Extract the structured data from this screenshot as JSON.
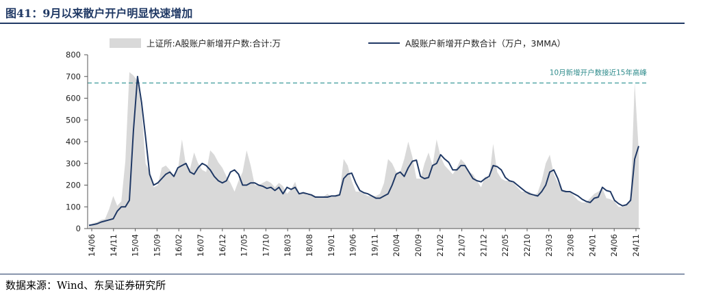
{
  "header": {
    "title": "图41：9月以来散户开户明显快速增加"
  },
  "footer": {
    "source": "数据来源：Wind、东吴证券研究所"
  },
  "chart_data": {
    "type": "area",
    "title": "",
    "xlabel": "",
    "ylabel": "",
    "ylim": [
      0,
      800
    ],
    "yticks": [
      0,
      100,
      200,
      300,
      400,
      500,
      600,
      700,
      800
    ],
    "legend_position": "top",
    "x_tick_labels": [
      "14/06",
      "14/11",
      "15/04",
      "15/09",
      "16/02",
      "16/07",
      "16/12",
      "17/05",
      "17/10",
      "18/03",
      "18/08",
      "19/01",
      "19/06",
      "19/11",
      "20/04",
      "20/09",
      "21/02",
      "21/07",
      "21/12",
      "22/05",
      "22/10",
      "23/03",
      "23/08",
      "24/01",
      "24/06",
      "24/11"
    ],
    "reference_line": {
      "value": 670,
      "label": "10月新增开户数接近15年高峰",
      "color": "#3a9a9a"
    },
    "colors": {
      "area": "#d9d9d9",
      "line": "#1f3864"
    },
    "series": [
      {
        "name": "上证所:A股账户新增开户数:合计:万",
        "kind": "area",
        "values": [
          10,
          25,
          30,
          40,
          45,
          90,
          150,
          105,
          125,
          310,
          720,
          705,
          680,
          550,
          300,
          260,
          190,
          200,
          280,
          290,
          270,
          240,
          270,
          410,
          290,
          275,
          350,
          300,
          270,
          260,
          360,
          340,
          305,
          280,
          240,
          210,
          170,
          220,
          260,
          360,
          290,
          200,
          200,
          210,
          220,
          210,
          190,
          210,
          195,
          160,
          180,
          215,
          160,
          165,
          155,
          160,
          150,
          148,
          148,
          160,
          145,
          155,
          160,
          320,
          290,
          220,
          170,
          170,
          160,
          150,
          150,
          150,
          160,
          210,
          320,
          300,
          260,
          260,
          320,
          400,
          330,
          230,
          230,
          300,
          350,
          290,
          410,
          330,
          290,
          270,
          250,
          280,
          320,
          300,
          260,
          250,
          220,
          190,
          240,
          230,
          390,
          260,
          230,
          220,
          220,
          210,
          190,
          170,
          170,
          170,
          150,
          165,
          220,
          300,
          340,
          250,
          210,
          180,
          175,
          170,
          150,
          130,
          120,
          120,
          140,
          160,
          170,
          185,
          140,
          135,
          125,
          100,
          100,
          110,
          140,
          670,
          360
        ]
      },
      {
        "name": "A股账户新增开户数合计（万户，3MMA）",
        "kind": "line",
        "values": [
          15,
          18,
          22,
          30,
          35,
          40,
          45,
          80,
          100,
          100,
          130,
          450,
          700,
          580,
          420,
          250,
          200,
          210,
          230,
          250,
          260,
          240,
          280,
          290,
          300,
          260,
          250,
          280,
          300,
          290,
          270,
          240,
          220,
          210,
          220,
          260,
          270,
          250,
          200,
          200,
          210,
          210,
          200,
          195,
          185,
          190,
          175,
          190,
          160,
          190,
          180,
          190,
          160,
          165,
          160,
          155,
          145,
          145,
          145,
          145,
          150,
          150,
          155,
          230,
          250,
          255,
          210,
          175,
          165,
          160,
          150,
          140,
          140,
          150,
          160,
          200,
          250,
          260,
          240,
          280,
          310,
          315,
          240,
          230,
          235,
          290,
          300,
          340,
          320,
          305,
          270,
          270,
          290,
          290,
          260,
          230,
          220,
          215,
          230,
          240,
          290,
          285,
          270,
          235,
          220,
          215,
          200,
          185,
          170,
          160,
          155,
          150,
          170,
          200,
          260,
          270,
          230,
          175,
          170,
          170,
          160,
          150,
          135,
          125,
          120,
          140,
          145,
          190,
          175,
          170,
          130,
          115,
          105,
          110,
          130,
          320,
          380
        ]
      }
    ]
  }
}
